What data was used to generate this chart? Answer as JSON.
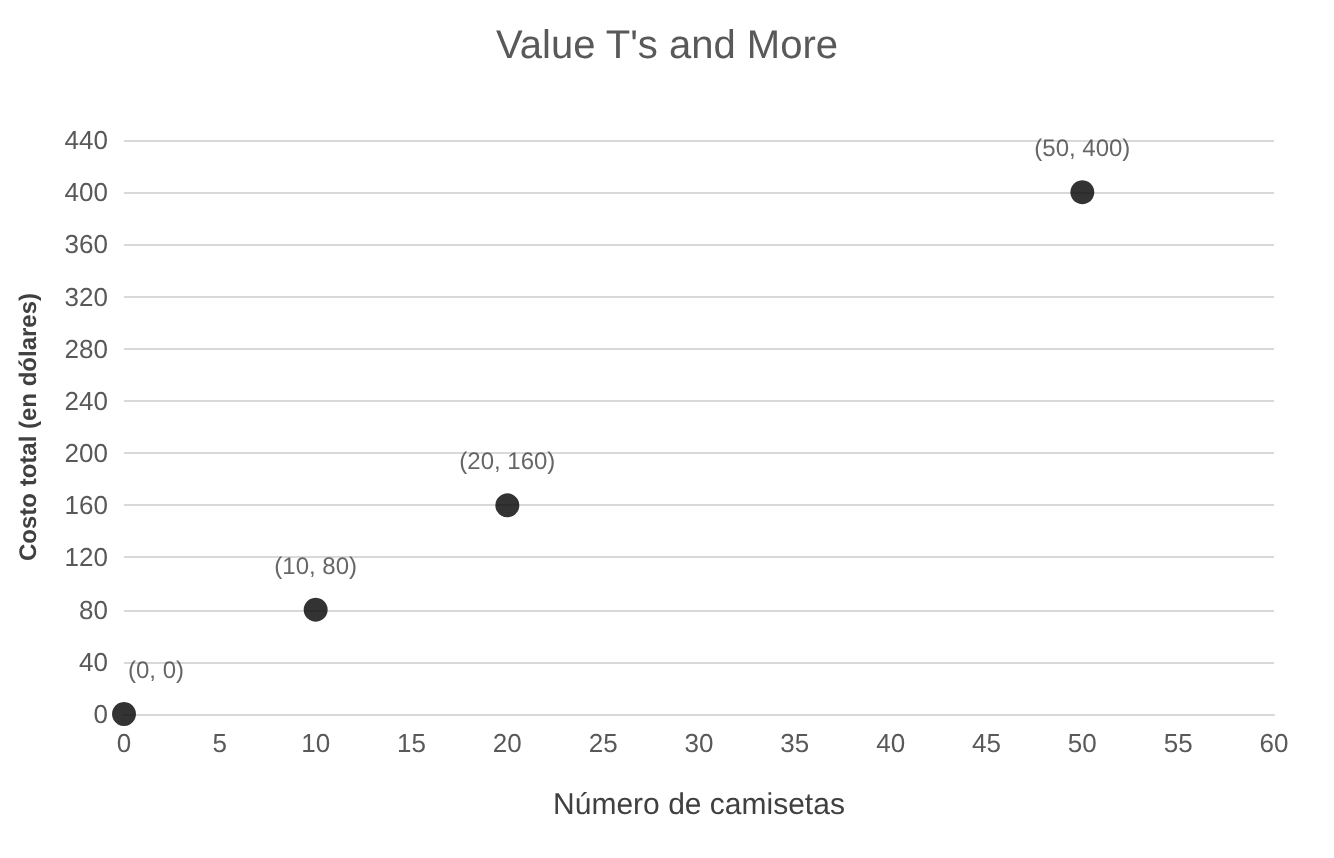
{
  "chart_data": {
    "type": "scatter",
    "title": "Value T's and More",
    "xlabel": "Número de camisetas",
    "ylabel": "Costo total (en dólares)",
    "x": [
      0,
      10,
      20,
      50
    ],
    "series": [
      {
        "color": "#000000",
        "values": [
          0,
          80,
          160,
          400
        ],
        "value_labels": [
          "(0, 0)",
          "(10, 80)",
          "(20, 160)",
          "(50, 400)"
        ]
      }
    ],
    "xlim": [
      0,
      60
    ],
    "xticks": [
      0,
      5,
      10,
      15,
      20,
      25,
      30,
      35,
      40,
      45,
      50,
      55,
      60
    ],
    "ylim": [
      0,
      440
    ],
    "yticks": [
      0,
      40,
      80,
      120,
      160,
      200,
      240,
      280,
      320,
      360,
      400,
      440
    ],
    "grid": "y",
    "marker": "circle"
  }
}
